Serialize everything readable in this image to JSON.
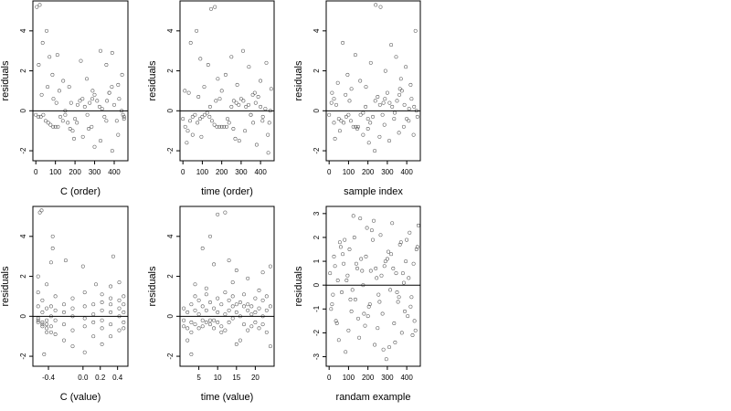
{
  "chart_data": [
    {
      "type": "scatter",
      "xlabel": "C (order)",
      "ylabel": "residuals",
      "xlim": [
        -15,
        470
      ],
      "ylim": [
        -2.5,
        5.5
      ],
      "xticks": [
        0,
        100,
        200,
        300,
        400
      ],
      "yticks": [
        -2,
        0,
        2,
        4
      ],
      "yticklabels": [
        "-2",
        "0",
        "2",
        "4"
      ],
      "reference_line_y": 0,
      "point_color": "#555555",
      "x": [
        0,
        13,
        25,
        38,
        50,
        63,
        75,
        88,
        100,
        113,
        125,
        138,
        150,
        163,
        175,
        188,
        200,
        213,
        225,
        238,
        250,
        263,
        275,
        288,
        300,
        313,
        325,
        338,
        350,
        363,
        375,
        388,
        400,
        413,
        425,
        438,
        450,
        5,
        20,
        35,
        55,
        70,
        85,
        110,
        140,
        170,
        230,
        260,
        290,
        330,
        360,
        390,
        420,
        440,
        30,
        60,
        90,
        120,
        150,
        180,
        210,
        240,
        270,
        300,
        330,
        360,
        390,
        420,
        450,
        15,
        105,
        195,
        285,
        375,
        445
      ],
      "y": [
        -0.2,
        -0.3,
        -0.3,
        -0.2,
        -0.5,
        -0.6,
        -0.7,
        -0.8,
        -0.8,
        -0.8,
        -0.3,
        -0.5,
        -0.2,
        -0.6,
        -0.9,
        -1.0,
        -0.4,
        0.3,
        0.5,
        0.6,
        0.2,
        -0.2,
        0.4,
        0.6,
        0.8,
        0.5,
        0.2,
        0.1,
        -0.3,
        0.5,
        0.9,
        1.2,
        0.3,
        -0.5,
        0.6,
        0.0,
        -0.4,
        5.2,
        5.3,
        3.4,
        4.0,
        2.7,
        1.8,
        2.8,
        1.5,
        1.2,
        2.5,
        1.6,
        1.0,
        3.0,
        2.3,
        2.9,
        1.3,
        1.8,
        0.8,
        1.2,
        0.6,
        1.0,
        0.0,
        0.4,
        -0.6,
        -1.3,
        -0.9,
        -1.8,
        -1.5,
        -0.5,
        -2.0,
        -1.2,
        -0.3,
        2.3,
        0.4,
        -1.4,
        -0.8,
        0.9,
        -0.2
      ]
    },
    {
      "type": "scatter",
      "xlabel": "time (order)",
      "ylabel": "residuals",
      "xlim": [
        -15,
        470
      ],
      "ylim": [
        -2.5,
        5.5
      ],
      "xticks": [
        0,
        100,
        200,
        300,
        400
      ],
      "yticks": [
        -2,
        0,
        2,
        4
      ],
      "yticklabels": [
        "-2",
        "0",
        "2",
        "4"
      ],
      "reference_line_y": 0,
      "point_color": "#555555",
      "x": [
        0,
        12,
        25,
        37,
        50,
        62,
        75,
        88,
        100,
        112,
        125,
        137,
        150,
        162,
        175,
        188,
        200,
        212,
        225,
        238,
        250,
        262,
        275,
        288,
        300,
        312,
        325,
        338,
        350,
        362,
        375,
        388,
        400,
        412,
        425,
        438,
        450,
        10,
        40,
        70,
        90,
        130,
        145,
        165,
        180,
        220,
        250,
        280,
        310,
        340,
        370,
        400,
        430,
        455,
        20,
        50,
        80,
        110,
        140,
        170,
        200,
        230,
        260,
        290,
        320,
        350,
        380,
        410,
        440,
        30,
        95,
        190,
        270,
        360,
        445
      ],
      "y": [
        -0.4,
        -0.8,
        -1.0,
        -0.5,
        -0.3,
        -0.2,
        -0.6,
        -0.4,
        -0.3,
        -0.2,
        -0.1,
        -0.3,
        -0.5,
        -0.7,
        -0.8,
        -0.8,
        -0.8,
        -0.8,
        -0.8,
        -0.6,
        0.2,
        0.5,
        0.4,
        0.3,
        0.6,
        0.5,
        0.2,
        0.3,
        -0.2,
        -0.6,
        0.4,
        0.7,
        0.2,
        -0.3,
        0.1,
        -1.2,
        0.0,
        1.0,
        3.4,
        4.0,
        2.6,
        2.3,
        5.1,
        5.2,
        1.6,
        1.8,
        2.7,
        1.3,
        3.0,
        2.2,
        0.9,
        1.5,
        2.4,
        1.1,
        -1.6,
        -1.2,
        0.7,
        1.2,
        0.2,
        0.5,
        1.0,
        -0.4,
        -0.9,
        -1.5,
        -1.0,
        -0.2,
        -1.7,
        -0.5,
        -2.1,
        0.9,
        -1.3,
        0.6,
        -1.4,
        0.8,
        -0.6
      ]
    },
    {
      "type": "scatter",
      "xlabel": "sample index",
      "ylabel": "residuals",
      "xlim": [
        -15,
        470
      ],
      "ylim": [
        -2.5,
        5.5
      ],
      "xticks": [
        0,
        100,
        200,
        300,
        400
      ],
      "yticks": [
        -2,
        0,
        2,
        4
      ],
      "yticklabels": [
        "-2",
        "0",
        "2",
        "4"
      ],
      "reference_line_y": 0,
      "point_color": "#555555",
      "x": [
        0,
        12,
        25,
        37,
        50,
        62,
        75,
        88,
        100,
        112,
        125,
        137,
        150,
        162,
        175,
        188,
        200,
        212,
        225,
        238,
        250,
        262,
        275,
        288,
        300,
        312,
        325,
        338,
        350,
        362,
        375,
        388,
        400,
        412,
        425,
        438,
        450,
        15,
        45,
        70,
        95,
        135,
        160,
        190,
        215,
        240,
        265,
        290,
        320,
        345,
        370,
        395,
        420,
        445,
        25,
        55,
        85,
        115,
        145,
        175,
        205,
        235,
        260,
        285,
        310,
        335,
        360,
        385,
        410,
        435,
        30,
        105,
        200,
        280,
        365,
        455
      ],
      "y": [
        -0.2,
        0.4,
        0.6,
        0.3,
        -0.4,
        -0.5,
        -0.6,
        -0.3,
        -0.2,
        -0.5,
        -0.8,
        -0.8,
        -0.8,
        -0.2,
        -0.1,
        0.2,
        -0.4,
        -0.6,
        -0.3,
        0.5,
        0.7,
        0.3,
        -0.2,
        0.6,
        0.9,
        0.4,
        0.2,
        -0.1,
        0.5,
        0.8,
        1.0,
        0.3,
        -0.4,
        0.1,
        0.6,
        0.2,
        0.0,
        0.9,
        1.4,
        3.4,
        1.8,
        2.8,
        1.5,
        1.2,
        2.4,
        5.3,
        5.2,
        2.0,
        3.3,
        2.7,
        1.6,
        2.2,
        1.3,
        4.0,
        -0.6,
        -1.0,
        0.8,
        1.1,
        -0.9,
        -1.2,
        -1.6,
        -2.0,
        -1.3,
        -0.7,
        -1.5,
        -0.4,
        -1.1,
        -0.8,
        -0.5,
        -1.2,
        -1.4,
        0.5,
        -0.9,
        0.4,
        1.1,
        -0.3
      ]
    },
    {
      "type": "scatter",
      "xlabel": "C (value)",
      "ylabel": "residuals",
      "xlim": [
        -0.58,
        0.52
      ],
      "ylim": [
        -2.5,
        5.5
      ],
      "xticks": [
        -0.4,
        0.0,
        0.2,
        0.4
      ],
      "xticklabels": [
        "-0.4",
        "0.0",
        "0.2",
        "0.4"
      ],
      "yticks": [
        -2,
        0,
        2,
        4
      ],
      "yticklabels": [
        "-2",
        "0",
        "2",
        "4"
      ],
      "reference_line_y": 0,
      "point_color": "#555555",
      "x": [
        -0.52,
        -0.52,
        -0.52,
        -0.52,
        -0.52,
        -0.52,
        -0.47,
        -0.47,
        -0.47,
        -0.47,
        -0.47,
        -0.42,
        -0.42,
        -0.42,
        -0.42,
        -0.42,
        -0.42,
        -0.37,
        -0.37,
        -0.37,
        -0.37,
        -0.37,
        -0.32,
        -0.32,
        -0.32,
        -0.32,
        -0.22,
        -0.22,
        -0.22,
        -0.22,
        -0.12,
        -0.12,
        -0.12,
        -0.12,
        -0.12,
        0.02,
        0.02,
        0.02,
        0.02,
        0.02,
        0.12,
        0.12,
        0.12,
        0.12,
        0.22,
        0.22,
        0.22,
        0.22,
        0.22,
        0.22,
        0.32,
        0.32,
        0.32,
        0.32,
        0.32,
        0.32,
        0.42,
        0.42,
        0.42,
        0.42,
        0.42,
        0.47,
        0.47,
        0.47,
        0.47,
        0.47,
        -0.5,
        -0.48,
        -0.35,
        -0.35,
        -0.2,
        0.0,
        0.15,
        0.35,
        -0.45
      ],
      "y": [
        -0.1,
        -0.2,
        -0.3,
        0.5,
        1.2,
        2.0,
        -0.3,
        -0.4,
        -0.5,
        0.2,
        0.8,
        -0.4,
        -0.6,
        -0.8,
        -0.2,
        0.4,
        1.6,
        -0.5,
        -0.8,
        0.0,
        0.5,
        2.7,
        -0.2,
        0.3,
        -0.9,
        1.0,
        0.2,
        -0.4,
        0.6,
        -1.2,
        0.0,
        0.4,
        -0.7,
        0.9,
        -1.5,
        -0.1,
        0.5,
        -0.5,
        1.2,
        -1.8,
        0.1,
        0.6,
        -0.3,
        -1.0,
        0.3,
        -0.2,
        0.7,
        -0.6,
        1.1,
        -1.4,
        0.2,
        0.6,
        -0.4,
        0.9,
        -1.0,
        1.5,
        0.4,
        0.0,
        0.8,
        -0.7,
        1.7,
        0.2,
        -0.3,
        0.6,
        -0.6,
        1.0,
        5.2,
        5.3,
        3.4,
        4.0,
        2.8,
        2.5,
        1.6,
        3.0,
        -1.9
      ]
    },
    {
      "type": "scatter",
      "xlabel": "time (value)",
      "ylabel": "residuals",
      "xlim": [
        0,
        25
      ],
      "ylim": [
        -2.5,
        5.5
      ],
      "xticks": [
        5,
        10,
        15,
        20
      ],
      "xticklabels": [
        "5",
        "10",
        "15",
        "20"
      ],
      "yticks": [
        -2,
        0,
        2,
        4
      ],
      "yticklabels": [
        "-2",
        "0",
        "2",
        "4"
      ],
      "reference_line_y": 0,
      "point_color": "#555555",
      "x": [
        1,
        1,
        1,
        2,
        2,
        2,
        3,
        3,
        3,
        4,
        4,
        4,
        5,
        5,
        5,
        6,
        6,
        6,
        7,
        7,
        7,
        8,
        8,
        8,
        9,
        9,
        9,
        10,
        10,
        10,
        11,
        11,
        11,
        12,
        12,
        12,
        13,
        13,
        13,
        14,
        14,
        14,
        15,
        15,
        15,
        16,
        16,
        16,
        17,
        17,
        17,
        18,
        18,
        18,
        19,
        19,
        19,
        20,
        20,
        20,
        21,
        21,
        21,
        22,
        22,
        22,
        23,
        23,
        23,
        24,
        24,
        24,
        4,
        6,
        8,
        9,
        10,
        12,
        13,
        15,
        18,
        22,
        3,
        7,
        14
      ],
      "y": [
        -0.2,
        -0.5,
        0.4,
        -0.6,
        -1.2,
        0.2,
        -0.8,
        -0.3,
        0.6,
        -0.4,
        0.3,
        1.0,
        -0.6,
        0.1,
        0.8,
        -0.5,
        -0.2,
        0.5,
        -0.3,
        0.3,
        1.1,
        -0.4,
        -0.2,
        0.7,
        -0.2,
        0.4,
        -0.6,
        -0.3,
        0.2,
        0.9,
        -0.5,
        -0.8,
        0.6,
        -0.7,
        0.1,
        1.2,
        0.3,
        -0.3,
        0.8,
        0.5,
        -0.1,
        1.0,
        -1.4,
        0.2,
        0.6,
        -1.2,
        0.0,
        0.7,
        0.5,
        -0.4,
        1.1,
        0.3,
        -0.7,
        0.6,
        0.1,
        0.5,
        -0.5,
        0.2,
        -0.3,
        0.9,
        0.4,
        -0.6,
        1.3,
        0.0,
        -0.4,
        0.8,
        -0.8,
        0.3,
        1.0,
        0.5,
        -1.5,
        2.5,
        1.6,
        3.4,
        4.0,
        2.6,
        5.1,
        5.2,
        2.8,
        2.3,
        1.9,
        2.2,
        -1.9,
        1.4,
        1.7
      ]
    },
    {
      "type": "scatter",
      "xlabel": "randam example",
      "ylabel": "residuals",
      "xlim": [
        -15,
        470
      ],
      "ylim": [
        -3.4,
        3.3
      ],
      "xticks": [
        0,
        100,
        200,
        300,
        400
      ],
      "yticks": [
        -3,
        -2,
        -1,
        0,
        1,
        2,
        3
      ],
      "yticklabels": [
        "-3",
        "-2",
        "-1",
        "0",
        "1",
        "2",
        "3"
      ],
      "reference_line_y": 0,
      "point_color": "#555555",
      "x": [
        5,
        15,
        25,
        35,
        45,
        55,
        65,
        75,
        85,
        95,
        105,
        115,
        125,
        135,
        145,
        155,
        165,
        175,
        185,
        195,
        205,
        215,
        225,
        235,
        245,
        255,
        265,
        275,
        285,
        295,
        305,
        315,
        325,
        335,
        345,
        355,
        365,
        375,
        385,
        395,
        405,
        415,
        425,
        435,
        445,
        455,
        10,
        30,
        50,
        70,
        90,
        110,
        130,
        150,
        170,
        190,
        210,
        230,
        250,
        270,
        290,
        310,
        330,
        350,
        370,
        390,
        410,
        430,
        450,
        20,
        60,
        100,
        140,
        180,
        220,
        260,
        300,
        340,
        380,
        420,
        460,
        40,
        80,
        120,
        160,
        200,
        240,
        280,
        320,
        360,
        400,
        440
      ],
      "y": [
        0.5,
        -0.8,
        1.2,
        -1.5,
        0.2,
        1.8,
        -0.3,
        0.9,
        -2.8,
        0.4,
        1.5,
        -1.1,
        2.9,
        -0.6,
        0.7,
        -2.2,
        1.1,
        0.0,
        -1.7,
        2.4,
        -0.9,
        0.6,
        1.9,
        -2.5,
        0.3,
        -0.4,
        2.1,
        -1.2,
        0.8,
        -3.1,
        1.4,
        -0.2,
        2.6,
        -1.6,
        0.5,
        -0.7,
        1.7,
        -2.0,
        0.1,
        1.0,
        -1.3,
        2.2,
        -0.5,
        0.9,
        -1.9,
        1.6,
        -1.0,
        0.8,
        -2.3,
        1.3,
        0.2,
        -0.6,
        2.0,
        -1.4,
        0.6,
        1.2,
        -0.8,
        2.7,
        -1.8,
        0.4,
        1.0,
        -2.6,
        0.7,
        -0.3,
        1.8,
        -1.1,
        0.3,
        -2.1,
        1.5,
        -0.4,
        1.6,
        -1.9,
        0.9,
        -1.2,
        2.3,
        -0.7,
        1.1,
        -2.4,
        0.5,
        -0.9,
        2.5,
        -1.6,
        1.9,
        -0.2,
        2.8,
        -1.3,
        0.7,
        -2.7,
        1.3,
        -0.5,
        1.9,
        -1.5
      ]
    }
  ]
}
